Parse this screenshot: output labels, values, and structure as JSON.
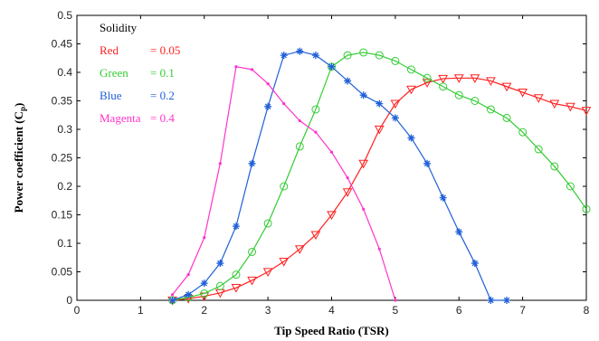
{
  "chart_data": {
    "type": "line",
    "title": "",
    "xlabel": "Tip Speed Ratio (TSR)",
    "ylabel": "Power coefficient (C",
    "ylabel_sub": "p",
    "ylabel_close": ")",
    "xlim": [
      0,
      8
    ],
    "ylim": [
      0,
      0.5
    ],
    "x_ticks": [
      "0",
      "1",
      "2",
      "3",
      "4",
      "5",
      "6",
      "7",
      "8"
    ],
    "y_ticks": [
      "0",
      "0.05",
      "0.1",
      "0.15",
      "0.2",
      "0.25",
      "0.3",
      "0.35",
      "0.4",
      "0.45",
      "0.5"
    ],
    "grid": false,
    "legend": {
      "title": "Solidity",
      "position": "top-left",
      "entries": [
        {
          "name": "Red",
          "value": "= 0.05",
          "color": "#ff2020"
        },
        {
          "name": "Green",
          "value": "= 0.1",
          "color": "#33cc33"
        },
        {
          "name": "Blue",
          "value": "= 0.2",
          "color": "#2060d8"
        },
        {
          "name": "Magenta",
          "value": "= 0.4",
          "color": "#ff33cc"
        }
      ]
    },
    "series": [
      {
        "name": "Red",
        "color": "#ff2020",
        "marker": "triangle-down",
        "x": [
          1.5,
          1.75,
          2.0,
          2.25,
          2.5,
          2.75,
          3.0,
          3.25,
          3.5,
          3.75,
          4.0,
          4.25,
          4.5,
          4.75,
          5.0,
          5.25,
          5.5,
          5.75,
          6.0,
          6.25,
          6.5,
          6.75,
          7.0,
          7.25,
          7.5,
          7.75,
          8.0
        ],
        "y": [
          0.0,
          0.003,
          0.007,
          0.013,
          0.022,
          0.035,
          0.05,
          0.068,
          0.09,
          0.115,
          0.15,
          0.19,
          0.24,
          0.3,
          0.345,
          0.37,
          0.382,
          0.389,
          0.39,
          0.39,
          0.385,
          0.375,
          0.365,
          0.355,
          0.345,
          0.34,
          0.333
        ]
      },
      {
        "name": "Green",
        "color": "#33cc33",
        "marker": "circle",
        "x": [
          1.5,
          1.75,
          2.0,
          2.25,
          2.5,
          2.75,
          3.0,
          3.25,
          3.5,
          3.75,
          4.0,
          4.25,
          4.5,
          4.75,
          5.0,
          5.25,
          5.5,
          5.75,
          6.0,
          6.25,
          6.5,
          6.75,
          7.0,
          7.25,
          7.5,
          7.75,
          8.0
        ],
        "y": [
          0.0,
          0.005,
          0.012,
          0.025,
          0.045,
          0.085,
          0.135,
          0.2,
          0.27,
          0.335,
          0.41,
          0.43,
          0.435,
          0.43,
          0.42,
          0.405,
          0.39,
          0.375,
          0.36,
          0.35,
          0.335,
          0.32,
          0.295,
          0.265,
          0.235,
          0.2,
          0.16
        ]
      },
      {
        "name": "Blue",
        "color": "#2060d8",
        "marker": "star",
        "x": [
          1.5,
          1.75,
          2.0,
          2.25,
          2.5,
          2.75,
          3.0,
          3.25,
          3.5,
          3.75,
          4.0,
          4.25,
          4.5,
          4.75,
          5.0,
          5.25,
          5.5,
          5.75,
          6.0,
          6.25,
          6.5,
          6.75
        ],
        "y": [
          0.0,
          0.01,
          0.03,
          0.065,
          0.13,
          0.24,
          0.34,
          0.43,
          0.437,
          0.43,
          0.41,
          0.385,
          0.36,
          0.345,
          0.32,
          0.285,
          0.24,
          0.18,
          0.12,
          0.065,
          0.0,
          0.0
        ]
      },
      {
        "name": "Magenta",
        "color": "#ff33cc",
        "marker": "dot",
        "x": [
          1.5,
          1.75,
          2.0,
          2.25,
          2.5,
          2.75,
          3.0,
          3.25,
          3.5,
          3.75,
          4.0,
          4.25,
          4.5,
          4.75,
          5.0
        ],
        "y": [
          0.01,
          0.045,
          0.11,
          0.24,
          0.41,
          0.405,
          0.38,
          0.345,
          0.315,
          0.295,
          0.26,
          0.215,
          0.16,
          0.09,
          0.0
        ]
      }
    ]
  }
}
